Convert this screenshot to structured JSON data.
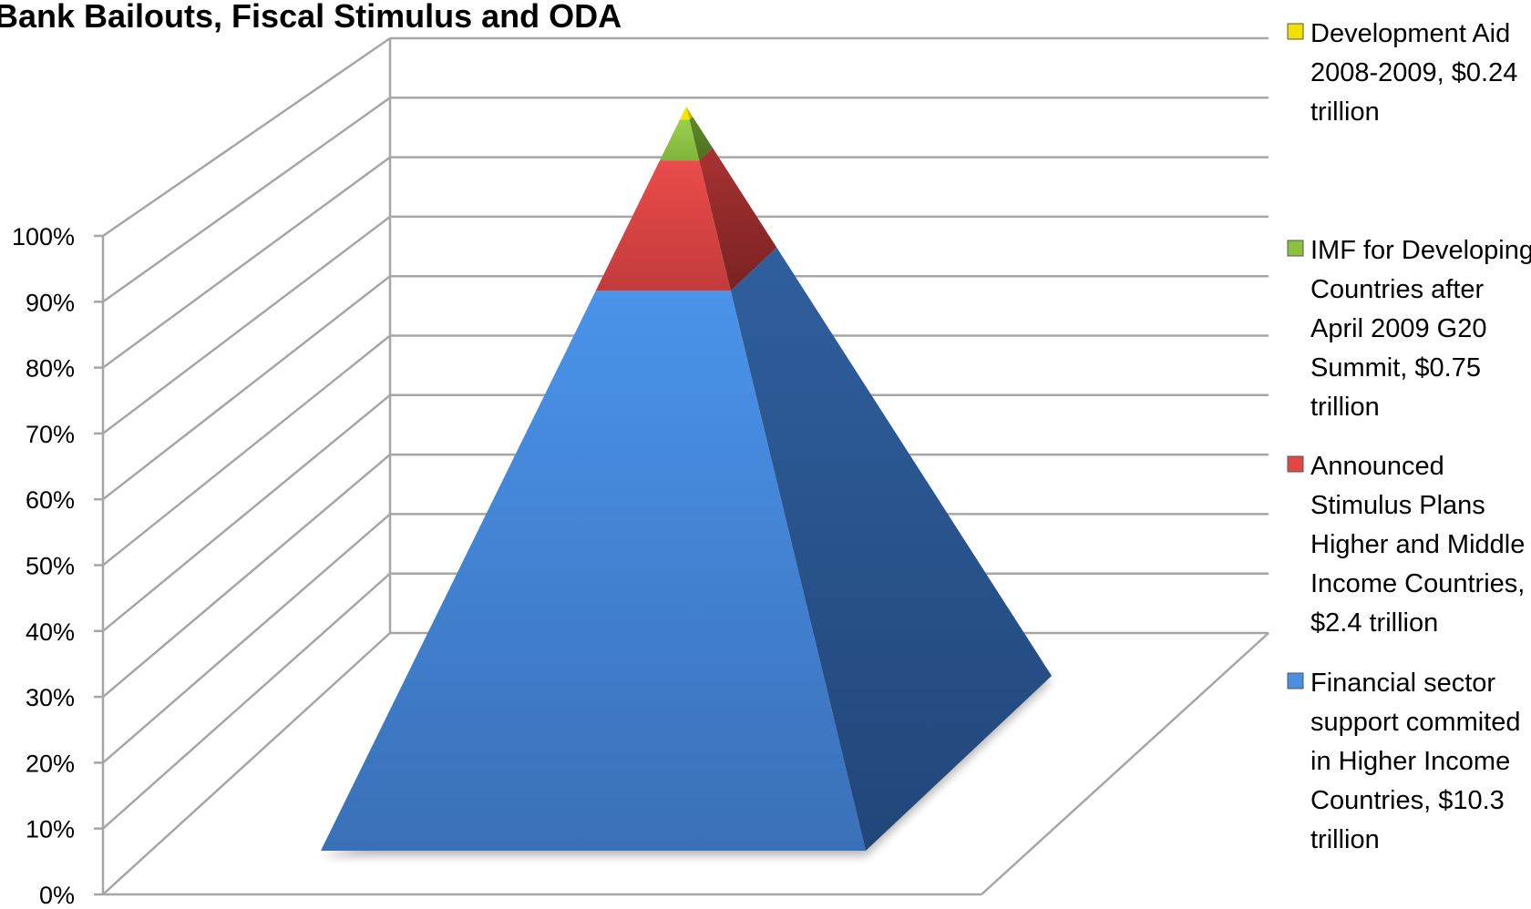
{
  "chart_data": {
    "type": "pyramid",
    "title": "Bank Bailouts, Fiscal Stimulus and ODA",
    "xlabel": "",
    "ylabel": "",
    "y_axis": {
      "ticks": [
        "0%",
        "10%",
        "20%",
        "30%",
        "40%",
        "50%",
        "60%",
        "70%",
        "80%",
        "90%",
        "100%"
      ],
      "range": [
        0,
        100
      ],
      "gridlines": true
    },
    "stacking": "percent",
    "series": [
      {
        "name": "Financial sector support commited in Higher Income Countries, $10.3 trillion",
        "value": 10.3,
        "unit": "trillion USD",
        "color": "#4a8fe0"
      },
      {
        "name": "Announced Stimulus Plans Higher and Middle Income Countries, $2.4 trillion",
        "value": 2.4,
        "unit": "trillion USD",
        "color": "#e04848"
      },
      {
        "name": "IMF for Developing Countries after April 2009 G20 Summit, $0.75 trillion",
        "value": 0.75,
        "unit": "trillion USD",
        "color": "#8cc043"
      },
      {
        "name": "Development Aid 2008-2009, $0.24 trillion",
        "value": 0.24,
        "unit": "trillion USD",
        "color": "#f2e000"
      }
    ],
    "legend": {
      "position": "right",
      "entries": [
        {
          "lines": [
            "Development Aid",
            "2008-2009, $0.24",
            "trillion"
          ],
          "color": "#f2e000"
        },
        {
          "lines": [
            "IMF for Developing",
            "Countries after",
            "April 2009 G20",
            "Summit, $0.75",
            "trillion"
          ],
          "color": "#8cc043"
        },
        {
          "lines": [
            "Announced",
            "Stimulus Plans",
            "Higher and Middle",
            "Income Countries,",
            "$2.4 trillion"
          ],
          "color": "#e04848"
        },
        {
          "lines": [
            "Financial sector",
            "support commited",
            "in Higher Income",
            "Countries, $10.3",
            "trillion"
          ],
          "color": "#4a8fe0"
        }
      ]
    }
  }
}
